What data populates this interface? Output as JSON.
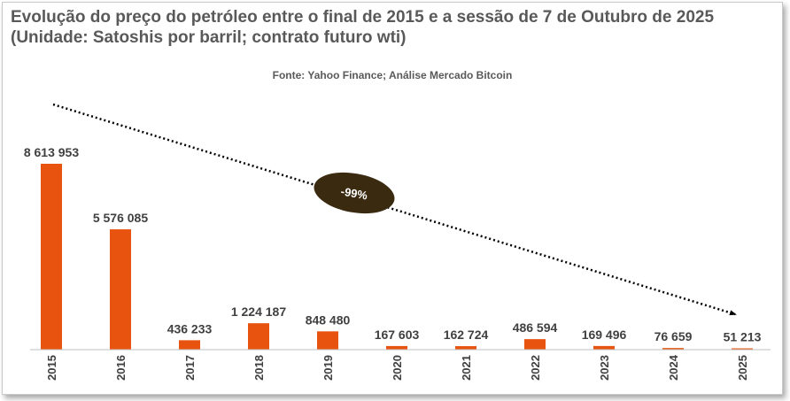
{
  "chart_data": {
    "type": "bar",
    "title": "Evolução do preço do petróleo entre o final de 2015 e a sessão de 7 de Outubro de 2025 (Unidade: Satoshis por barril; contrato futuro wti)",
    "subtitle": "Fonte: Yahoo Finance; Análise Mercado Bitcoin",
    "categories": [
      "2015",
      "2016",
      "2017",
      "2018",
      "2019",
      "2020",
      "2021",
      "2022",
      "2023",
      "2024",
      "2025"
    ],
    "values": [
      8613953,
      5576085,
      436233,
      1224187,
      848480,
      167603,
      162724,
      486594,
      169496,
      76659,
      51213
    ],
    "data_labels": [
      "8 613 953",
      "5 576 085",
      "436 233",
      "1 224 187",
      "848 480",
      "167 603",
      "162 724",
      "486 594",
      "169 496",
      "76 659",
      "51 213"
    ],
    "ylim": [
      0,
      9000000
    ],
    "xlabel": "",
    "ylabel": "",
    "annotation": "-99%",
    "bar_color": "#E8540F",
    "badge_color": "#3A2A10"
  }
}
